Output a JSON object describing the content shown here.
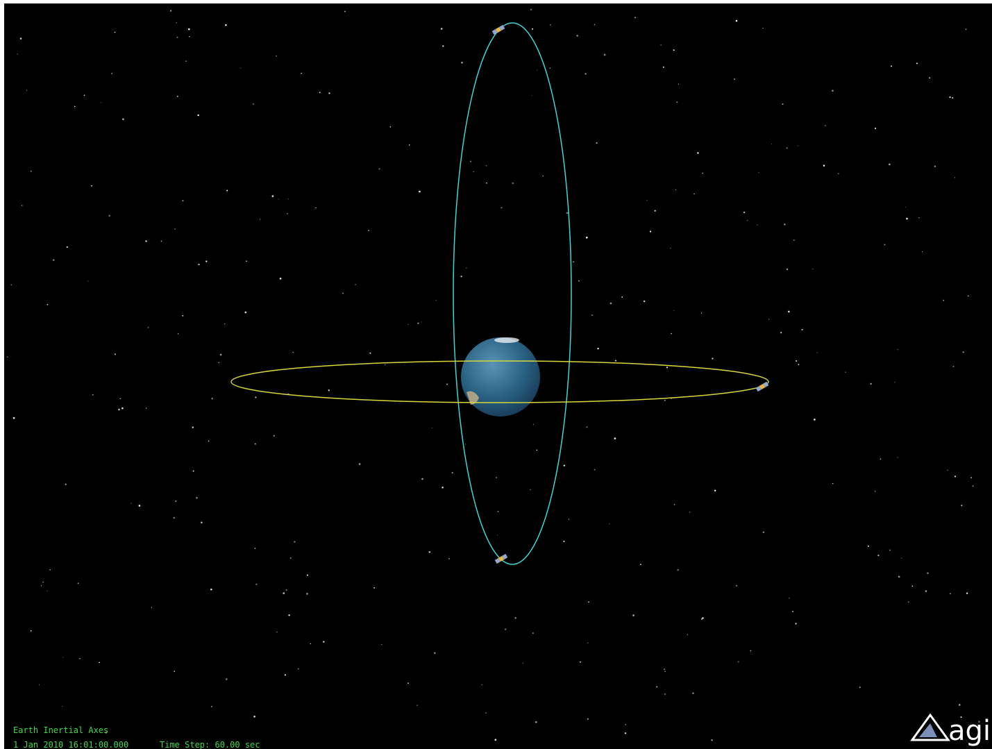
{
  "hud": {
    "frame": "Earth Inertial Axes",
    "time": "1 Jan 2010 16:01:00.000",
    "step": "Time Step: 60.00 sec"
  },
  "logo": {
    "text": "agi"
  }
}
